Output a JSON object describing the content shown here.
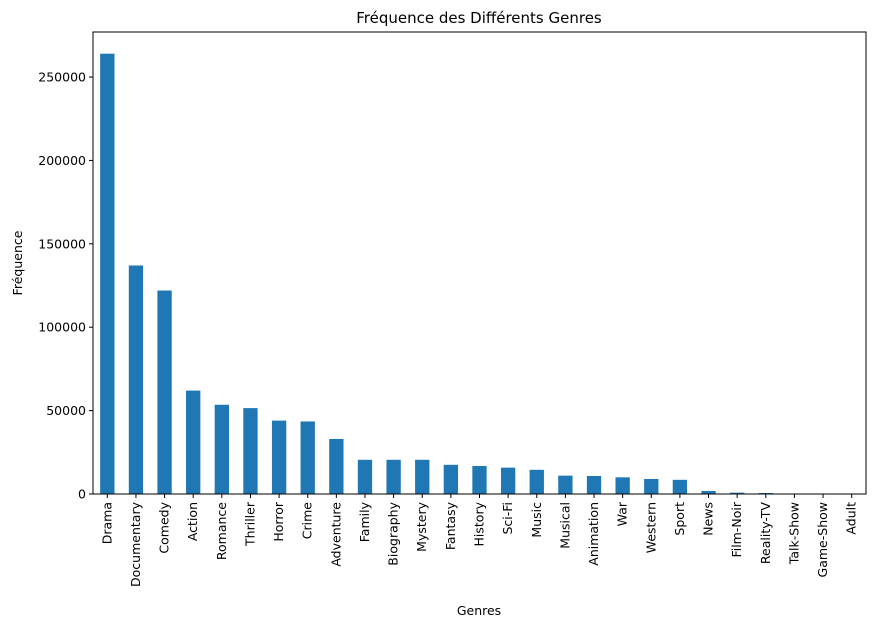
{
  "chart_data": {
    "type": "bar",
    "title": "Fréquence des Différents Genres",
    "xlabel": "Genres",
    "ylabel": "Fréquence",
    "categories": [
      "Drama",
      "Documentary",
      "Comedy",
      "Action",
      "Romance",
      "Thriller",
      "Horror",
      "Crime",
      "Adventure",
      "Family",
      "Biography",
      "Mystery",
      "Fantasy",
      "History",
      "Sci-Fi",
      "Music",
      "Musical",
      "Animation",
      "War",
      "Western",
      "Sport",
      "News",
      "Film-Noir",
      "Reality-TV",
      "Talk-Show",
      "Game-Show",
      "Adult"
    ],
    "values": [
      264000,
      137000,
      122000,
      62000,
      53500,
      51500,
      44000,
      43500,
      33000,
      20500,
      20500,
      20500,
      17500,
      16800,
      15800,
      14500,
      11000,
      10800,
      10000,
      9000,
      8500,
      1800,
      800,
      600,
      150,
      100,
      50
    ],
    "ylim": [
      0,
      277000
    ],
    "yticks": [
      0,
      50000,
      100000,
      150000,
      200000,
      250000
    ],
    "ytick_labels": [
      "0",
      "50000",
      "100000",
      "150000",
      "200000",
      "250000"
    ],
    "bar_color": "#1f77b4",
    "grid": false,
    "legend": false
  }
}
